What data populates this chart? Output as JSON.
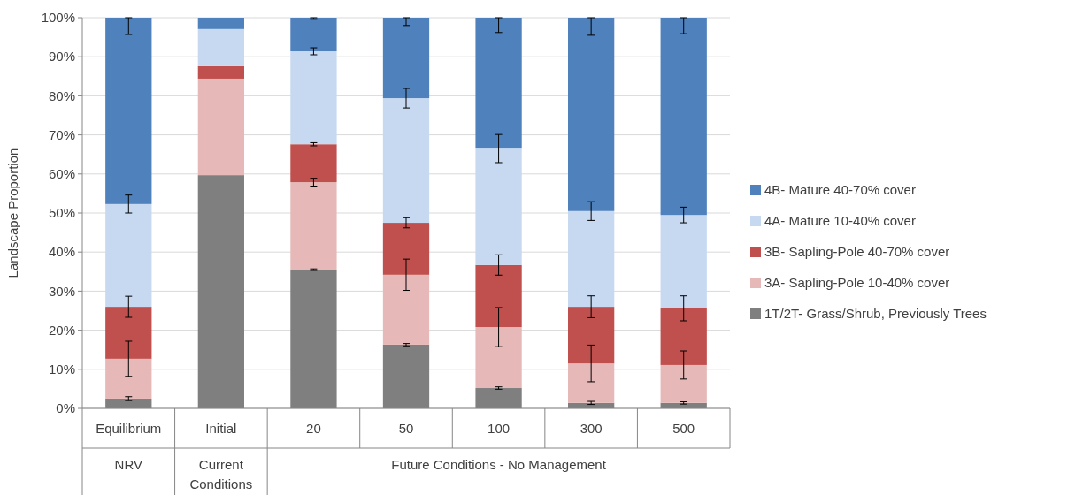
{
  "chart_data": {
    "type": "bar",
    "stacked": true,
    "ylabel": "Landscape Proportion",
    "categories": [
      "Equilibrium",
      "Initial",
      "20",
      "50",
      "100",
      "300",
      "500"
    ],
    "ylim": [
      0,
      100
    ],
    "yticks": [
      {
        "value": 0,
        "label": "0%"
      },
      {
        "value": 10,
        "label": "10%"
      },
      {
        "value": 20,
        "label": "20%"
      },
      {
        "value": 30,
        "label": "30%"
      },
      {
        "value": 40,
        "label": "40%"
      },
      {
        "value": 50,
        "label": "50%"
      },
      {
        "value": 60,
        "label": "60%"
      },
      {
        "value": 70,
        "label": "70%"
      },
      {
        "value": 80,
        "label": "80%"
      },
      {
        "value": 90,
        "label": "90%"
      },
      {
        "value": 100,
        "label": "100%"
      }
    ],
    "grid": "y",
    "legend": "right",
    "annotations": [
      "NRV",
      "Current Conditions",
      "Future Conditions - No Management"
    ],
    "series": [
      {
        "name": "1T/2T- Grass/Shrub, Previously Trees",
        "color": "#7f7f7f",
        "values": [
          2.5,
          59.7,
          35.5,
          16.3,
          5.2,
          1.4,
          1.4
        ],
        "errors": [
          [
            2.0,
            3.0
          ],
          null,
          [
            35.3,
            35.7
          ],
          [
            16.0,
            16.6
          ],
          [
            4.9,
            5.5
          ],
          [
            1.0,
            1.8
          ],
          [
            1.1,
            1.7
          ]
        ]
      },
      {
        "name": "3A- Sapling-Pole 10-40% cover",
        "color": "#e6b9b8",
        "values": [
          10.2,
          24.7,
          22.4,
          17.9,
          15.6,
          10.1,
          9.7
        ],
        "errors": [
          [
            8.2,
            17.2
          ],
          null,
          [
            56.9,
            58.9
          ],
          [
            30.2,
            38.2
          ],
          [
            15.8,
            25.8
          ],
          [
            6.8,
            16.2
          ],
          [
            7.5,
            14.7
          ]
        ]
      },
      {
        "name": "3B- Sapling-Pole 40-70% cover",
        "color": "#c0504d",
        "values": [
          13.3,
          3.2,
          9.7,
          13.3,
          15.9,
          14.5,
          14.5
        ],
        "errors": [
          [
            23.3,
            28.7
          ],
          null,
          [
            67.2,
            68.0
          ],
          [
            46.2,
            48.8
          ],
          [
            34.1,
            39.3
          ],
          [
            23.2,
            28.8
          ],
          [
            22.4,
            28.8
          ]
        ]
      },
      {
        "name": "4A- Mature 10-40% cover",
        "color": "#c6d9f1",
        "values": [
          26.3,
          9.5,
          23.8,
          31.9,
          29.8,
          24.5,
          23.9
        ],
        "errors": [
          [
            50.0,
            54.6
          ],
          null,
          [
            90.5,
            92.3
          ],
          [
            76.9,
            81.9
          ],
          [
            62.9,
            70.1
          ],
          [
            48.1,
            52.9
          ],
          [
            47.5,
            51.5
          ]
        ]
      },
      {
        "name": "4B- Mature 40-70% cover",
        "color": "#4f81bd",
        "values": [
          47.7,
          2.9,
          8.6,
          20.6,
          33.5,
          49.5,
          50.5
        ],
        "errors": [
          [
            95.7,
            100
          ],
          null,
          [
            99.6,
            100
          ],
          [
            98,
            100
          ],
          [
            96.2,
            100
          ],
          [
            95.5,
            100
          ],
          [
            95.9,
            100
          ]
        ]
      }
    ]
  }
}
